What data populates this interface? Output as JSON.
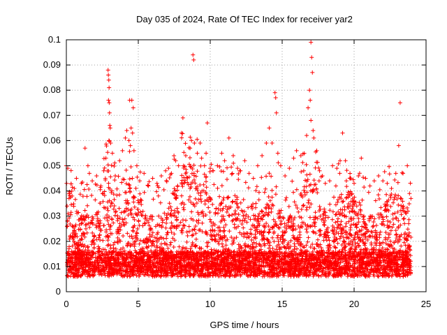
{
  "chart_data": {
    "type": "scatter",
    "title": "Day 035 of 2024, Rate Of TEC Index for receiver yar2",
    "xlabel": "GPS time / hours",
    "ylabel": "ROTI / TECUs",
    "xlim": [
      0,
      25
    ],
    "ylim": [
      0,
      0.1
    ],
    "x_ticks": [
      "0",
      "5",
      "10",
      "15",
      "20",
      "25"
    ],
    "y_ticks": [
      "0",
      "0.01",
      "0.02",
      "0.03",
      "0.04",
      "0.05",
      "0.06",
      "0.07",
      "0.08",
      "0.09",
      "0.1"
    ],
    "grid": true,
    "legend": "none",
    "marker": "+",
    "color": "#ff0000",
    "points": [
      [
        0.0,
        0.05
      ],
      [
        0.02,
        0.043
      ],
      [
        0.05,
        0.034
      ],
      [
        0.08,
        0.028
      ],
      [
        0.1,
        0.049
      ],
      [
        0.12,
        0.031
      ],
      [
        0.4,
        0.038
      ],
      [
        0.55,
        0.041
      ],
      [
        0.7,
        0.045
      ],
      [
        1.05,
        0.043
      ],
      [
        1.3,
        0.057
      ],
      [
        1.5,
        0.05
      ],
      [
        1.6,
        0.047
      ],
      [
        1.8,
        0.044
      ],
      [
        2.1,
        0.046
      ],
      [
        2.4,
        0.042
      ],
      [
        2.6,
        0.048
      ],
      [
        2.75,
        0.053
      ],
      [
        2.9,
        0.088
      ],
      [
        2.92,
        0.086
      ],
      [
        2.95,
        0.084
      ],
      [
        2.97,
        0.081
      ],
      [
        2.93,
        0.076
      ],
      [
        2.98,
        0.075
      ],
      [
        3.0,
        0.071
      ],
      [
        3.02,
        0.066
      ],
      [
        3.05,
        0.065
      ],
      [
        2.96,
        0.06
      ],
      [
        3.08,
        0.059
      ],
      [
        3.2,
        0.055
      ],
      [
        3.4,
        0.046
      ],
      [
        3.7,
        0.052
      ],
      [
        3.9,
        0.056
      ],
      [
        4.1,
        0.061
      ],
      [
        4.2,
        0.064
      ],
      [
        4.35,
        0.06
      ],
      [
        4.4,
        0.076
      ],
      [
        4.55,
        0.076
      ],
      [
        4.65,
        0.073
      ],
      [
        4.5,
        0.065
      ],
      [
        4.6,
        0.063
      ],
      [
        4.45,
        0.058
      ],
      [
        4.7,
        0.056
      ],
      [
        4.9,
        0.05
      ],
      [
        5.1,
        0.044
      ],
      [
        5.4,
        0.047
      ],
      [
        5.7,
        0.042
      ],
      [
        6.0,
        0.045
      ],
      [
        6.3,
        0.043
      ],
      [
        6.6,
        0.046
      ],
      [
        6.9,
        0.048
      ],
      [
        7.1,
        0.049
      ],
      [
        7.3,
        0.047
      ],
      [
        7.6,
        0.052
      ],
      [
        7.8,
        0.05
      ],
      [
        8.0,
        0.063
      ],
      [
        8.1,
        0.069
      ],
      [
        8.3,
        0.054
      ],
      [
        8.6,
        0.057
      ],
      [
        8.7,
        0.06
      ],
      [
        8.8,
        0.094
      ],
      [
        8.85,
        0.092
      ],
      [
        8.9,
        0.059
      ],
      [
        9.1,
        0.055
      ],
      [
        9.3,
        0.059
      ],
      [
        9.4,
        0.053
      ],
      [
        9.6,
        0.05
      ],
      [
        9.8,
        0.067
      ],
      [
        10.0,
        0.049
      ],
      [
        10.2,
        0.048
      ],
      [
        10.5,
        0.05
      ],
      [
        10.8,
        0.055
      ],
      [
        11.0,
        0.052
      ],
      [
        11.3,
        0.061
      ],
      [
        11.6,
        0.054
      ],
      [
        11.9,
        0.049
      ],
      [
        12.1,
        0.048
      ],
      [
        12.4,
        0.052
      ],
      [
        12.7,
        0.047
      ],
      [
        13.0,
        0.045
      ],
      [
        13.3,
        0.05
      ],
      [
        13.6,
        0.054
      ],
      [
        13.9,
        0.059
      ],
      [
        14.1,
        0.065
      ],
      [
        14.3,
        0.059
      ],
      [
        14.5,
        0.079
      ],
      [
        14.55,
        0.077
      ],
      [
        14.6,
        0.071
      ],
      [
        14.7,
        0.055
      ],
      [
        14.9,
        0.05
      ],
      [
        15.2,
        0.046
      ],
      [
        15.5,
        0.049
      ],
      [
        15.8,
        0.053
      ],
      [
        16.0,
        0.056
      ],
      [
        16.3,
        0.054
      ],
      [
        16.5,
        0.048
      ],
      [
        16.7,
        0.062
      ],
      [
        16.8,
        0.073
      ],
      [
        16.9,
        0.08
      ],
      [
        16.95,
        0.076
      ],
      [
        17.0,
        0.099
      ],
      [
        17.05,
        0.093
      ],
      [
        17.1,
        0.087
      ],
      [
        17.0,
        0.068
      ],
      [
        17.15,
        0.064
      ],
      [
        17.2,
        0.061
      ],
      [
        17.4,
        0.056
      ],
      [
        17.6,
        0.048
      ],
      [
        17.8,
        0.046
      ],
      [
        18.0,
        0.043
      ],
      [
        18.3,
        0.044
      ],
      [
        18.5,
        0.05
      ],
      [
        18.8,
        0.049
      ],
      [
        19.0,
        0.047
      ],
      [
        19.2,
        0.063
      ],
      [
        19.4,
        0.052
      ],
      [
        19.7,
        0.045
      ],
      [
        20.0,
        0.043
      ],
      [
        20.3,
        0.046
      ],
      [
        20.5,
        0.053
      ],
      [
        20.8,
        0.045
      ],
      [
        21.1,
        0.042
      ],
      [
        21.4,
        0.044
      ],
      [
        21.7,
        0.046
      ],
      [
        22.0,
        0.044
      ],
      [
        22.3,
        0.043
      ],
      [
        22.6,
        0.041
      ],
      [
        22.9,
        0.047
      ],
      [
        23.1,
        0.058
      ],
      [
        23.2,
        0.075
      ],
      [
        23.4,
        0.047
      ],
      [
        23.7,
        0.05
      ],
      [
        23.85,
        0.039
      ],
      [
        23.95,
        0.037
      ]
    ]
  }
}
